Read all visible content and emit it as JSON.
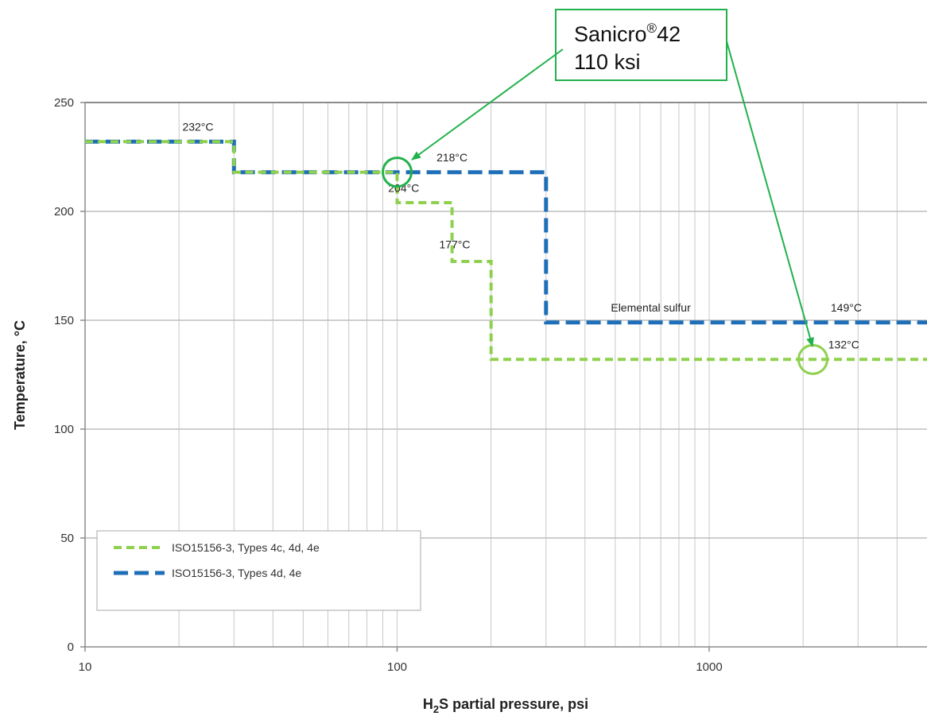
{
  "chart_data": {
    "type": "line",
    "xscale": "log",
    "xlim": [
      10,
      5000
    ],
    "ylim": [
      0,
      250
    ],
    "xticks": [
      10,
      100,
      1000
    ],
    "yticks": [
      0,
      50,
      100,
      150,
      200,
      250
    ],
    "grid": true,
    "xlabel": {
      "prefix": "H",
      "sub": "2",
      "suffix": "S partial pressure, psi"
    },
    "ylabel": "Temperature, °C",
    "legend_position": "bottom-left",
    "series": [
      {
        "name": "ISO15156-3, Types 4c, 4d, 4e",
        "color": "#8fd14f",
        "style": "short-dash",
        "x": [
          10,
          30,
          30,
          100,
          100,
          150,
          150,
          200,
          200,
          5000
        ],
        "y": [
          232,
          232,
          218,
          218,
          204,
          204,
          177,
          177,
          132,
          132
        ]
      },
      {
        "name": "ISO15156-3, Types 4d, 4e",
        "color": "#1f6fb8",
        "style": "long-dash",
        "x": [
          10,
          30,
          30,
          300,
          300,
          5000
        ],
        "y": [
          232,
          232,
          218,
          218,
          149,
          149
        ]
      }
    ],
    "annotations": [
      {
        "text": "232°C",
        "x": 23,
        "y": 237
      },
      {
        "text": "218°C",
        "x": 150,
        "y": 223
      },
      {
        "text": "204°C",
        "x": 105,
        "y": 209
      },
      {
        "text": "177°C",
        "x": 153,
        "y": 183
      },
      {
        "text": "Elemental sulfur",
        "x": 650,
        "y": 154
      },
      {
        "text": "149°C",
        "x": 2750,
        "y": 154
      },
      {
        "text": "132°C",
        "x": 2700,
        "y": 137
      }
    ],
    "markers": [
      {
        "x": 100,
        "y": 218,
        "color": "#22b14c"
      },
      {
        "x": 2150,
        "y": 132,
        "color": "#8fd14f"
      }
    ],
    "callout": {
      "line1": "Sanicro",
      "sup": "®",
      "line1_end": "42",
      "line2": "110 ksi",
      "color": "#22b14c"
    }
  }
}
